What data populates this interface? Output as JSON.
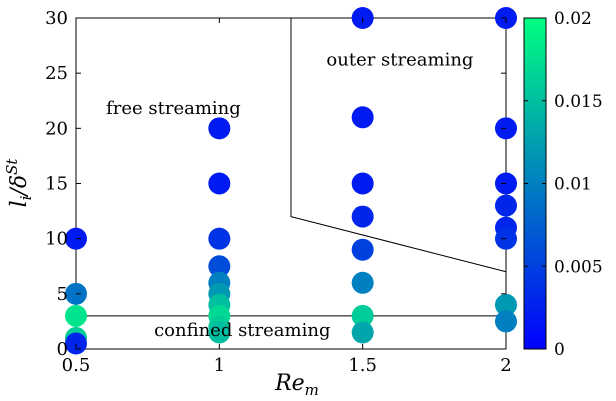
{
  "chart_data": {
    "type": "scatter",
    "xlabel": "Re_m",
    "ylabel": "l_i/δ^St",
    "xlim": [
      0.5,
      2
    ],
    "ylim": [
      0,
      30
    ],
    "xticks": [
      "0.5",
      "1",
      "1.5",
      "2"
    ],
    "yticks": [
      "0",
      "5",
      "10",
      "15",
      "20",
      "25",
      "30"
    ],
    "color_scale": {
      "min": 0,
      "max": 0.02,
      "ticks": [
        "0",
        "0.005",
        "0.01",
        "0.015",
        "0.02"
      ],
      "colormap": "winter",
      "low_color": "#0000ff",
      "high_color": "#00ff80"
    },
    "points": [
      {
        "x": 0.5,
        "y": 10,
        "c": 0.002
      },
      {
        "x": 0.5,
        "y": 5,
        "c": 0.009
      },
      {
        "x": 0.5,
        "y": 3,
        "c": 0.018
      },
      {
        "x": 0.5,
        "y": 1,
        "c": 0.016
      },
      {
        "x": 0.5,
        "y": 0.5,
        "c": 0.003
      },
      {
        "x": 1,
        "y": 20,
        "c": 0.002
      },
      {
        "x": 1,
        "y": 15,
        "c": 0.002
      },
      {
        "x": 1,
        "y": 10,
        "c": 0.004
      },
      {
        "x": 1,
        "y": 7.5,
        "c": 0.006
      },
      {
        "x": 1,
        "y": 6,
        "c": 0.01
      },
      {
        "x": 1,
        "y": 5,
        "c": 0.012
      },
      {
        "x": 1,
        "y": 4,
        "c": 0.015
      },
      {
        "x": 1,
        "y": 3,
        "c": 0.017
      },
      {
        "x": 1,
        "y": 2,
        "c": 0.016
      },
      {
        "x": 1,
        "y": 1.5,
        "c": 0.015
      },
      {
        "x": 1.5,
        "y": 30,
        "c": 0.002
      },
      {
        "x": 1.5,
        "y": 21,
        "c": 0.002
      },
      {
        "x": 1.5,
        "y": 15,
        "c": 0.002
      },
      {
        "x": 1.5,
        "y": 12,
        "c": 0.003
      },
      {
        "x": 1.5,
        "y": 9,
        "c": 0.005
      },
      {
        "x": 1.5,
        "y": 6,
        "c": 0.01
      },
      {
        "x": 1.5,
        "y": 3,
        "c": 0.016
      },
      {
        "x": 1.5,
        "y": 1.5,
        "c": 0.013
      },
      {
        "x": 2,
        "y": 30,
        "c": 0.002
      },
      {
        "x": 2,
        "y": 20,
        "c": 0.002
      },
      {
        "x": 2,
        "y": 15,
        "c": 0.002
      },
      {
        "x": 2,
        "y": 13,
        "c": 0.003
      },
      {
        "x": 2,
        "y": 11,
        "c": 0.003
      },
      {
        "x": 2,
        "y": 10,
        "c": 0.004
      },
      {
        "x": 2,
        "y": 4,
        "c": 0.012
      },
      {
        "x": 2,
        "y": 2.5,
        "c": 0.01
      }
    ],
    "region_boundaries": [
      {
        "name": "confined-boundary",
        "points": [
          [
            0.5,
            3
          ],
          [
            2,
            3
          ]
        ]
      },
      {
        "name": "outer-boundary",
        "points": [
          [
            1.25,
            30
          ],
          [
            1.25,
            12
          ],
          [
            2,
            7
          ]
        ]
      }
    ],
    "region_labels": [
      {
        "text": "free streaming",
        "x": 0.84,
        "y": 21.3
      },
      {
        "text": "outer streaming",
        "x": 1.63,
        "y": 25.7
      },
      {
        "text": "confined streaming",
        "x": 1.08,
        "y": 1.2
      }
    ]
  }
}
